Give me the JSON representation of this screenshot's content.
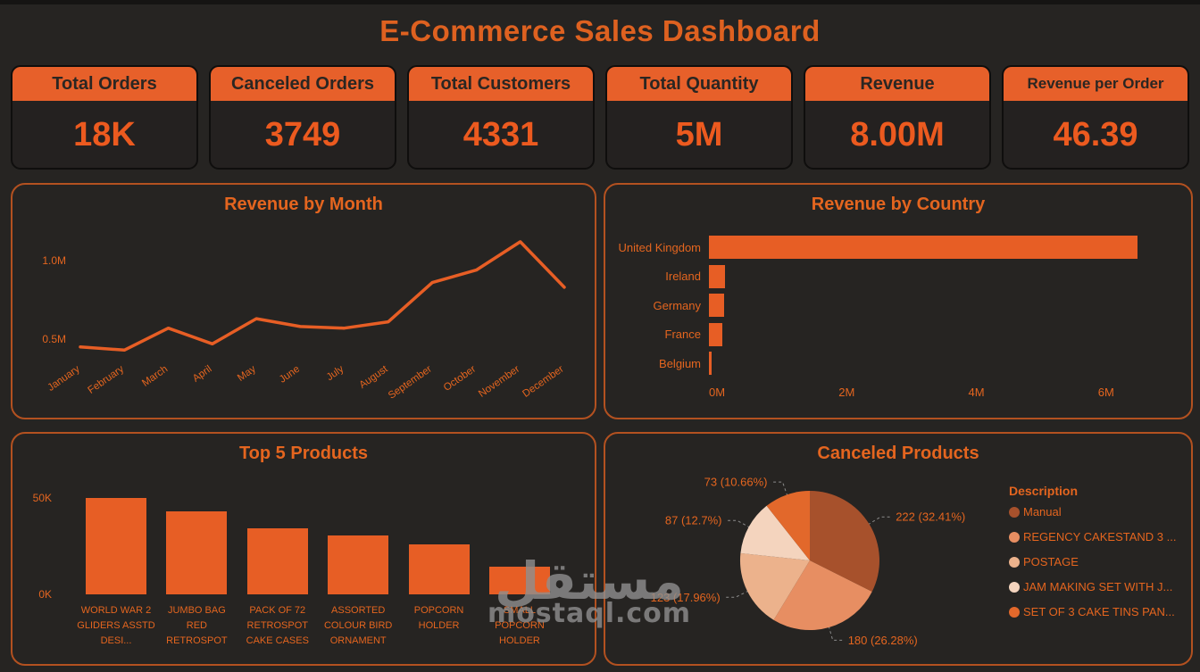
{
  "page": {
    "title": "E-Commerce Sales Dashboard"
  },
  "colors": {
    "background": "#262422",
    "accent": "#E75E25",
    "text_orange": "#E4651F",
    "title": "#DE6120",
    "kpi_header_bg": "#E7602A",
    "kpi_value": "#EC5A1F",
    "card_border": "#B35120",
    "callout_line": "#8B8B8B",
    "watermark_gray": "#8F8F8F"
  },
  "kpis": [
    {
      "label": "Total Orders",
      "value": "18K"
    },
    {
      "label": "Canceled Orders",
      "value": "3749"
    },
    {
      "label": "Total Customers",
      "value": "4331"
    },
    {
      "label": "Total Quantity",
      "value": "5M"
    },
    {
      "label": "Revenue",
      "value": "8.00M"
    },
    {
      "label": "Revenue per Order",
      "value": "46.39"
    }
  ],
  "watermark": {
    "arabic": "مستقل",
    "latin": "mostaql.com"
  },
  "chart_data": [
    {
      "id": "revenue_by_month",
      "type": "line",
      "title": "Revenue by Month",
      "x": [
        "January",
        "February",
        "March",
        "April",
        "May",
        "June",
        "July",
        "August",
        "September",
        "October",
        "November",
        "December"
      ],
      "values": [
        0.45,
        0.43,
        0.57,
        0.47,
        0.63,
        0.58,
        0.57,
        0.61,
        0.86,
        0.94,
        1.12,
        0.83
      ],
      "unit": "M",
      "ylabel": "Revenue",
      "y_ticks": [
        "1.0M",
        "0.5M"
      ],
      "ylim": [
        0.35,
        1.25
      ],
      "grid": false,
      "legend": "none"
    },
    {
      "id": "revenue_by_country",
      "type": "bar",
      "orientation": "horizontal",
      "title": "Revenue by Country",
      "categories": [
        "United Kingdom",
        "Ireland",
        "Germany",
        "France",
        "Belgium"
      ],
      "values": [
        6.5,
        0.25,
        0.23,
        0.2,
        0.04
      ],
      "unit": "M",
      "x_ticks": [
        "0M",
        "2M",
        "4M",
        "6M"
      ],
      "xlim": [
        0,
        7.2
      ],
      "grid": false,
      "legend": "none"
    },
    {
      "id": "top_5_products",
      "type": "bar",
      "orientation": "vertical",
      "title": "Top 5 Products",
      "categories": [
        "WORLD WAR 2 GLIDERS ASSTD DESI...",
        "JUMBO BAG RED RETROSPOT",
        "PACK OF 72 RETROSPOT CAKE CASES",
        "ASSORTED COLOUR BIRD ORNAMENT",
        "POPCORN HOLDER",
        "SMALL POPCORN HOLDER"
      ],
      "values": [
        50,
        43.3,
        34.2,
        30.6,
        26,
        14.4
      ],
      "unit": "K",
      "y_ticks": [
        "50K",
        "0K"
      ],
      "ylim": [
        0,
        50
      ],
      "grid": false,
      "legend": "none"
    },
    {
      "id": "canceled_products",
      "type": "pie",
      "title": "Canceled Products",
      "legend_title": "Description",
      "legend_position": "right",
      "slices": [
        {
          "label": "Manual",
          "count": 222,
          "pct": 32.41,
          "callout": "222 (32.41%)",
          "color": "#A7512C"
        },
        {
          "label": "REGENCY CAKESTAND 3 ...",
          "count": 180,
          "pct": 26.28,
          "callout": "180 (26.28%)",
          "color": "#E78E62"
        },
        {
          "label": "POSTAGE",
          "count": 123,
          "pct": 17.96,
          "callout": "123 (17.96%)",
          "color": "#ECB28C"
        },
        {
          "label": "JAM MAKING SET WITH J...",
          "count": 87,
          "pct": 12.7,
          "callout": "87 (12.7%)",
          "color": "#F4D4BE"
        },
        {
          "label": "SET OF 3 CAKE TINS PAN...",
          "count": 73,
          "pct": 10.66,
          "callout": "73 (10.66%)",
          "color": "#E2682B"
        }
      ]
    }
  ]
}
